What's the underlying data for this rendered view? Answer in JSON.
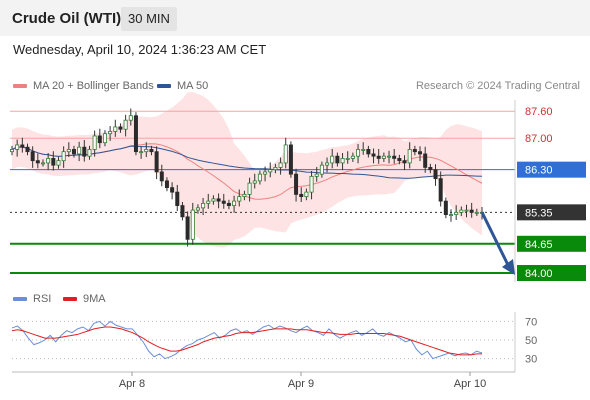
{
  "header": {
    "title": "Crude Oil (WTI)",
    "timeframe": "30 MIN",
    "datetime": "Wednesday, April 10, 2024 1:36:23 AM CET"
  },
  "legend": {
    "ma20": "MA 20 + Bollinger Bands",
    "ma50": "MA 50",
    "credit": "Research © 2024 Trading Central",
    "ma20_color": "#f08080",
    "ma50_color": "#2f5597"
  },
  "rsi_legend": {
    "rsi": "RSI",
    "ma9": "9MA",
    "rsi_color": "#6a8fd8",
    "ma9_color": "#e02020"
  },
  "chart_data": [
    {
      "type": "candlestick",
      "ylim": [
        83.8,
        87.85
      ],
      "x_ticks": [
        "Apr 8",
        "Apr 9",
        "Apr 10"
      ],
      "levels": [
        {
          "value": 87.6,
          "label": "87.60",
          "kind": "resistance",
          "color": "#f4a6a6"
        },
        {
          "value": 87.0,
          "label": "87.00",
          "kind": "resistance",
          "color": "#f4a6a6"
        },
        {
          "value": 86.3,
          "label": "86.30",
          "kind": "pivot",
          "color": "#2f6fd6"
        },
        {
          "value": 85.35,
          "label": "85.35",
          "kind": "last",
          "color": "#333333"
        },
        {
          "value": 84.65,
          "label": "84.65",
          "kind": "support",
          "color": "#0a8a0a"
        },
        {
          "value": 84.0,
          "label": "84.00",
          "kind": "support",
          "color": "#0a8a0a"
        }
      ],
      "close": [
        86.75,
        86.85,
        86.8,
        86.7,
        86.5,
        86.45,
        86.45,
        86.55,
        86.4,
        86.5,
        86.7,
        86.75,
        86.65,
        86.8,
        86.6,
        86.75,
        87.05,
        86.9,
        87.1,
        87.15,
        87.25,
        87.2,
        87.4,
        87.5,
        86.7,
        86.7,
        86.75,
        86.7,
        86.25,
        86.05,
        85.9,
        85.8,
        85.5,
        85.25,
        84.75,
        85.4,
        85.45,
        85.55,
        85.6,
        85.65,
        85.6,
        85.55,
        85.5,
        85.6,
        85.7,
        85.75,
        86.0,
        86.05,
        86.2,
        86.25,
        86.3,
        86.35,
        86.45,
        86.85,
        86.2,
        85.75,
        85.7,
        85.8,
        86.15,
        86.2,
        86.4,
        86.45,
        86.6,
        86.45,
        86.55,
        86.55,
        86.6,
        86.75,
        86.75,
        86.65,
        86.6,
        86.55,
        86.6,
        86.6,
        86.55,
        86.5,
        86.45,
        86.75,
        86.7,
        86.65,
        86.35,
        86.3,
        86.1,
        85.6,
        85.3,
        85.3,
        85.35,
        85.4,
        85.4,
        85.35,
        85.35,
        85.35
      ]
    },
    {
      "type": "line",
      "title": "RSI",
      "ylim": [
        22,
        78
      ],
      "y_ticks": [
        30,
        50,
        70
      ],
      "series": [
        {
          "name": "RSI",
          "values": [
            63,
            65,
            60,
            52,
            45,
            47,
            50,
            55,
            48,
            55,
            60,
            58,
            62,
            64,
            60,
            68,
            70,
            65,
            70,
            66,
            64,
            62,
            62,
            55,
            48,
            38,
            32,
            35,
            30,
            32,
            35,
            40,
            44,
            46,
            50,
            52,
            55,
            58,
            52,
            55,
            60,
            62,
            58,
            60,
            56,
            60,
            64,
            66,
            62,
            65,
            63,
            60,
            58,
            62,
            65,
            60,
            58,
            55,
            62,
            56,
            52,
            55,
            58,
            60,
            55,
            58,
            62,
            56,
            54,
            58,
            55,
            52,
            48,
            50,
            40,
            34,
            38,
            30,
            32,
            34,
            36,
            33,
            35,
            36,
            34,
            38,
            36
          ]
        },
        {
          "name": "9MA",
          "values": [
            60,
            61,
            60,
            58,
            56,
            54,
            52,
            52,
            52,
            53,
            54,
            55,
            56,
            58,
            60,
            62,
            63,
            64,
            64,
            63,
            62,
            60,
            58,
            55,
            52,
            48,
            45,
            42,
            40,
            38,
            38,
            39,
            41,
            43,
            45,
            48,
            50,
            52,
            53,
            54,
            55,
            57,
            58,
            58,
            58,
            59,
            60,
            61,
            62,
            62,
            62,
            62,
            61,
            61,
            61,
            60,
            59,
            58,
            58,
            57,
            56,
            56,
            56,
            57,
            57,
            57,
            57,
            57,
            57,
            56,
            55,
            54,
            52,
            50,
            48,
            46,
            44,
            42,
            40,
            38,
            36,
            35,
            34,
            34,
            34,
            35,
            35
          ]
        }
      ]
    }
  ]
}
